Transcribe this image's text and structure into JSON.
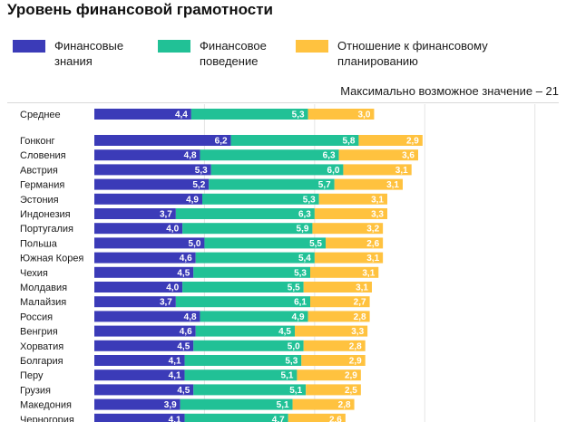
{
  "chart_data": {
    "type": "bar",
    "orientation": "horizontal",
    "stacked": true,
    "title": "Уровень финансовой грамотности",
    "note": "Максимально возможное значение – 21",
    "xlim": [
      0,
      21
    ],
    "grid": true,
    "legend_position": "top",
    "categories": [
      "Среднее",
      "Гонконг",
      "Словения",
      "Австрия",
      "Германия",
      "Эстония",
      "Индонезия",
      "Португалия",
      "Польша",
      "Южная Корея",
      "Чехия",
      "Молдавия",
      "Малайзия",
      "Россия",
      "Венгрия",
      "Хорватия",
      "Болгария",
      "Перу",
      "Грузия",
      "Македония",
      "Черногория"
    ],
    "labels": {
      "s1": [
        "4,4",
        "6,2",
        "4,8",
        "5,3",
        "5,2",
        "4,9",
        "3,7",
        "4,0",
        "5,0",
        "4,6",
        "4,5",
        "4,0",
        "3,7",
        "4,8",
        "4,6",
        "4,5",
        "4,1",
        "4,1",
        "4,5",
        "3,9",
        "4,1"
      ],
      "s2": [
        "5,3",
        "5,8",
        "6,3",
        "6,0",
        "5,7",
        "5,3",
        "6,3",
        "5,9",
        "5,5",
        "5,4",
        "5,3",
        "5,5",
        "6,1",
        "4,9",
        "4,5",
        "5,0",
        "5,3",
        "5,1",
        "5,1",
        "5,1",
        "4,7"
      ],
      "s3": [
        "3,0",
        "2,9",
        "3,6",
        "3,1",
        "3,1",
        "3,1",
        "3,3",
        "3,2",
        "2,6",
        "3,1",
        "3,1",
        "3,1",
        "2,7",
        "2,8",
        "3,3",
        "2,8",
        "2,9",
        "2,9",
        "2,5",
        "2,8",
        "2,6"
      ]
    },
    "series": [
      {
        "name": "Финансовые знания",
        "color": "#3b3bb8",
        "values": [
          4.4,
          6.2,
          4.8,
          5.3,
          5.2,
          4.9,
          3.7,
          4.0,
          5.0,
          4.6,
          4.5,
          4.0,
          3.7,
          4.8,
          4.6,
          4.5,
          4.1,
          4.1,
          4.5,
          3.9,
          4.1
        ]
      },
      {
        "name": "Финансовое поведение",
        "color": "#21c196",
        "values": [
          5.3,
          5.8,
          6.3,
          6.0,
          5.7,
          5.3,
          6.3,
          5.9,
          5.5,
          5.4,
          5.3,
          5.5,
          6.1,
          4.9,
          4.5,
          5.0,
          5.3,
          5.1,
          5.1,
          5.1,
          4.7
        ]
      },
      {
        "name": "Отношение к финансовому планированию",
        "color": "#ffc23f",
        "values": [
          3.0,
          2.9,
          3.6,
          3.1,
          3.1,
          3.1,
          3.3,
          3.2,
          2.6,
          3.1,
          3.1,
          3.1,
          2.7,
          2.8,
          3.3,
          2.8,
          2.9,
          2.9,
          2.5,
          2.8,
          2.6
        ]
      }
    ]
  }
}
